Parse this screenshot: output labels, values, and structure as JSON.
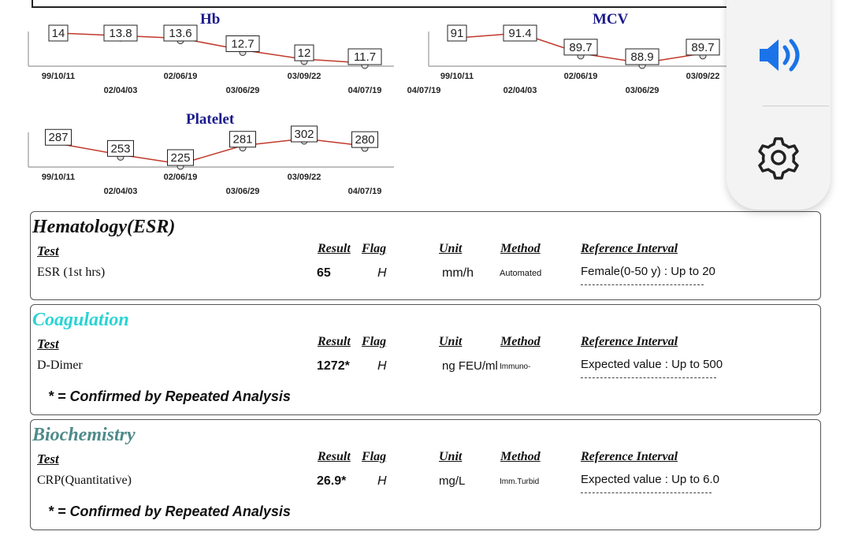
{
  "charts": [
    {
      "title": "Hb",
      "values": [
        "14",
        "13.8",
        "13.6",
        "12.7",
        "12",
        "11.7"
      ],
      "points": [
        14,
        13.8,
        13.6,
        12.7,
        12,
        11.7
      ],
      "dates_top": [
        "99/10/11",
        "02/06/19",
        "03/09/22"
      ],
      "dates_bottom": [
        "02/04/03",
        "03/06/29",
        "04/07/19"
      ]
    },
    {
      "title": "MCV",
      "values": [
        "91",
        "91.4",
        "89.7",
        "88.9",
        "89.7"
      ],
      "points": [
        91,
        91.4,
        89.7,
        88.9,
        89.7
      ],
      "dates_top": [
        "99/10/11",
        "02/06/19",
        "03/09/22"
      ],
      "dates_bottom": [
        "02/04/03",
        "03/06/29",
        "04/07/19"
      ]
    },
    {
      "title": "Platelet",
      "values": [
        "287",
        "253",
        "225",
        "281",
        "302",
        "280"
      ],
      "points": [
        287,
        253,
        225,
        281,
        302,
        280
      ],
      "dates_top": [
        "99/10/11",
        "02/06/19",
        "03/09/22"
      ],
      "dates_bottom": [
        "02/04/03",
        "03/06/29",
        "04/07/19"
      ]
    }
  ],
  "headers": {
    "test": "Test",
    "result": "Result",
    "flag": "Flag",
    "unit": "Unit",
    "method": "Method",
    "ref": "Reference Interval"
  },
  "sections": {
    "hematology": {
      "title": "Hematology(ESR)",
      "color": "#111111",
      "test": "ESR  (1st hrs)",
      "result": "65",
      "flag": "H",
      "unit": "mm/h",
      "method": "Automated",
      "ref": "Female(0-50 y) : Up to 20"
    },
    "coagulation": {
      "title": "Coagulation",
      "color": "#2ad4d4",
      "test": "D-Dimer",
      "result": "1272*",
      "flag": "H",
      "unit": "ng FEU/ml",
      "method": "Immuno-",
      "ref": "Expected value : Up to 500",
      "note": "* = Confirmed by Repeated Analysis"
    },
    "biochemistry": {
      "title": "Biochemistry",
      "color": "#4f8a8a",
      "test": "CRP(Quantitative)",
      "result": "26.9*",
      "flag": "H",
      "unit": "mg/L",
      "method": "Imm.Turbid",
      "ref": "Expected value : Up to 6.0",
      "note": "* = Confirmed by Repeated Analysis"
    }
  },
  "floating": {
    "accent": "#1a73e8",
    "icons": [
      "speaker-icon",
      "gear-icon"
    ]
  }
}
